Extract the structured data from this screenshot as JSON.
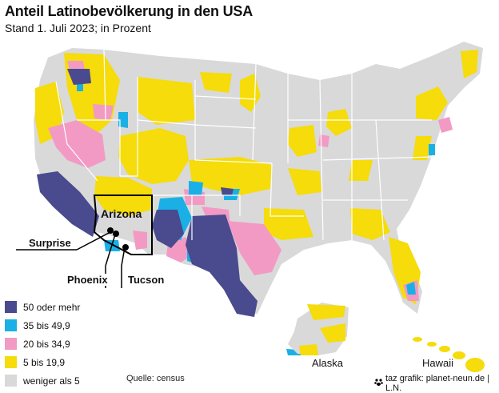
{
  "title": "Anteil Latinobevölkerung in den USA",
  "subtitle": "Stand 1. Juli 2023; in Prozent",
  "legend": [
    {
      "label": "50 oder mehr",
      "color": "#4a4a8e"
    },
    {
      "label": "35 bis 49,9",
      "color": "#1ab0e6"
    },
    {
      "label": "20 bis 34,9",
      "color": "#f29ac4"
    },
    {
      "label": "5 bis 19,9",
      "color": "#f5dc0a"
    },
    {
      "label": "weniger als 5",
      "color": "#d9d9d9"
    }
  ],
  "labels": {
    "state": "Arizona",
    "cities": [
      "Surprise",
      "Phoenix",
      "Tucson"
    ],
    "alaska": "Alaska",
    "hawaii": "Hawaii"
  },
  "source": "Quelle: census",
  "credit": "taz grafik: planet-neun.de | L.N.",
  "credit_icon": "paw-logo-icon"
}
